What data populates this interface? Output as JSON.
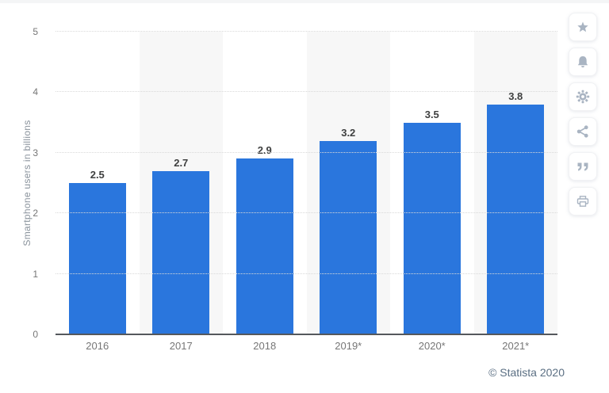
{
  "chart_data": {
    "type": "bar",
    "title": "",
    "categories": [
      "2016",
      "2017",
      "2018",
      "2019*",
      "2020*",
      "2021*"
    ],
    "values": [
      2.5,
      2.7,
      2.9,
      3.2,
      3.5,
      3.8
    ],
    "value_labels": [
      "2.5",
      "2.7",
      "2.9",
      "3.2",
      "3.5",
      "3.8"
    ],
    "xlabel": "",
    "ylabel": "Smartphone users in billions",
    "ylim": [
      0,
      5
    ],
    "yticks": [
      0,
      1,
      2,
      3,
      4,
      5
    ],
    "grid": "horizontal-dotted",
    "legend": "none",
    "alternating_column_bands": true,
    "colors": {
      "bar": "#2a76dd",
      "band": "#f7f7f7",
      "gridline": "#d9d9d9",
      "axis_line": "#55585c",
      "tick_label": "#767676",
      "value_label": "#3f4040",
      "ylabel_color": "#8a939c"
    }
  },
  "footer": {
    "credit": "© Statista 2020"
  },
  "sidebar": {
    "icon_color": "#a9b4c2",
    "items": [
      {
        "name": "favorite",
        "icon": "star-icon"
      },
      {
        "name": "notifications",
        "icon": "bell-icon"
      },
      {
        "name": "settings",
        "icon": "gear-icon"
      },
      {
        "name": "share",
        "icon": "share-icon"
      },
      {
        "name": "cite",
        "icon": "quote-icon"
      },
      {
        "name": "print",
        "icon": "printer-icon"
      }
    ]
  }
}
